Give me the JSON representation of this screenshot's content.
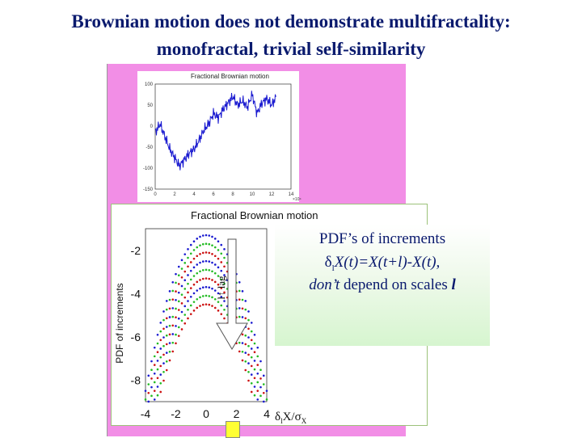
{
  "slide": {
    "title_line1": "Brownian motion does not demonstrate multifractality:",
    "title_line2": "monofractal, trivial self-similarity",
    "callout_line1": "PDF’s of increments",
    "callout_line2": "δ",
    "callout_line2_sub": "l",
    "callout_line2_rest": "X(t)=X(t+l)-X(t),",
    "callout_line3_em": "don’t",
    "callout_line3_rest": " depend on scales ",
    "callout_line3_var": "l",
    "arrow_label": "l↑ lag"
  },
  "colors": {
    "blue": "#1a1ad0",
    "green": "#22bb22",
    "red": "#cc1111",
    "pink": "#f28ee6",
    "title": "#0a1a6e"
  },
  "chart_data": [
    {
      "type": "line",
      "title": "Fractional Brownian motion",
      "xlim": [
        0,
        14
      ],
      "ylim": [
        -150,
        100
      ],
      "x_ticks": [
        "0",
        "2",
        "4",
        "6",
        "8",
        "10",
        "12",
        "14"
      ],
      "y_ticks": [
        "100",
        "50",
        "0",
        "-50",
        "-100",
        "-150"
      ],
      "x_multiplier": "×10⁴",
      "series": [
        {
          "x": [
            0,
            0.5,
            1,
            1.5,
            2,
            2.5,
            3,
            3.5,
            4,
            4.5,
            5,
            5.5,
            6,
            6.5,
            7,
            7.5,
            8,
            8.5,
            9,
            9.5,
            10,
            10.5,
            11,
            11.5,
            12,
            12.5
          ],
          "y": [
            -15,
            5,
            -25,
            -55,
            -75,
            -95,
            -80,
            -65,
            -55,
            -35,
            -10,
            5,
            30,
            20,
            40,
            55,
            70,
            50,
            60,
            45,
            75,
            30,
            55,
            65,
            50,
            70
          ]
        }
      ]
    },
    {
      "type": "scatter",
      "title": "Fractional Brownian motion",
      "ylabel": "PDF of increments",
      "xlabel_prefix": "δ",
      "xlabel_sub": "l",
      "xlabel_rest": "X/σ",
      "xlabel_sub2": "X",
      "xlim": [
        -4,
        4
      ],
      "ylim": [
        -9,
        -1
      ],
      "x_ticks": [
        "-4",
        "-2",
        "0",
        "2",
        "4"
      ],
      "y_ticks": [
        "-2",
        "-4",
        "-6",
        "-8"
      ],
      "series_peaks": [
        -1.3,
        -1.7,
        -2.1,
        -2.5,
        -2.9,
        -3.3,
        -3.7,
        -4.1,
        -4.5
      ],
      "series_colors": [
        "#1a1ad0",
        "#22bb22",
        "#cc1111",
        "#1a1ad0",
        "#22bb22",
        "#cc1111",
        "#1a1ad0",
        "#22bb22",
        "#cc1111"
      ]
    }
  ]
}
